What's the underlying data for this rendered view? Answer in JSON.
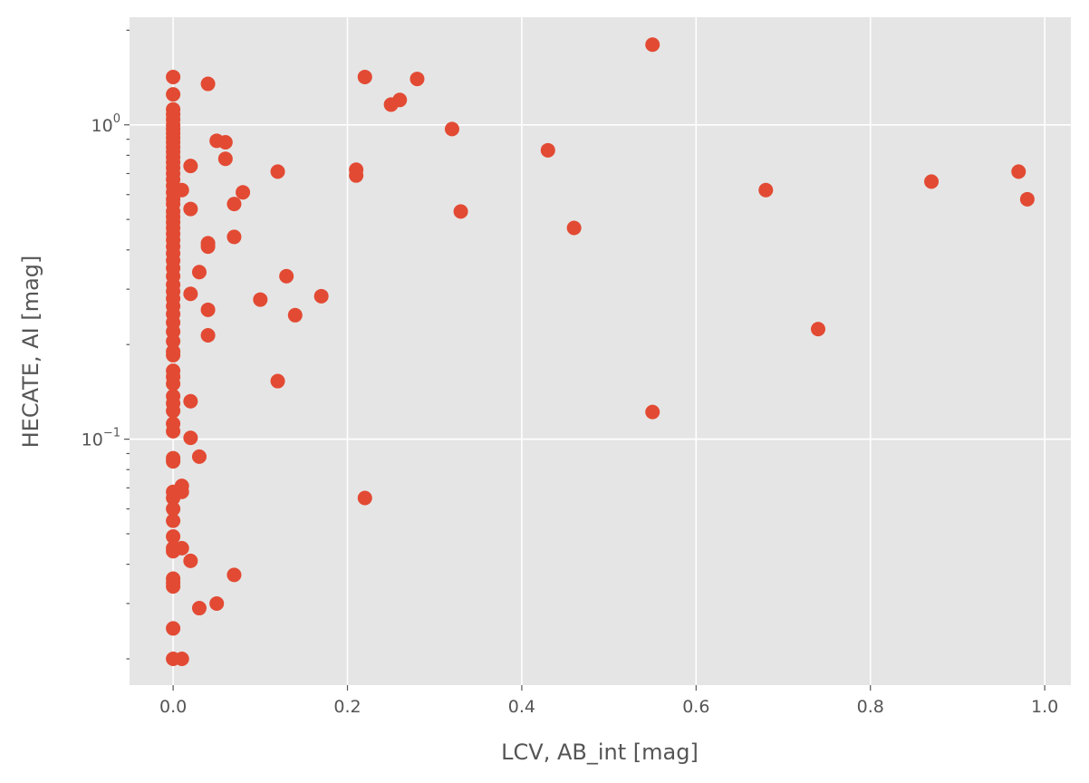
{
  "chart_data": {
    "type": "scatter",
    "title": "",
    "xlabel": "LCV, AB_int [mag]",
    "ylabel": "HECATE, AI [mag]",
    "xlim": [
      -0.05,
      1.03
    ],
    "ylim": [
      0.0165,
      2.2
    ],
    "yscale": "log",
    "grid": true,
    "legend": "none",
    "colors": {
      "background": "#e5e5e5",
      "grid": "#ffffff",
      "point": "#e24a33",
      "text": "#555555"
    },
    "x_ticks": [
      {
        "value": 0.0,
        "label": "0.0"
      },
      {
        "value": 0.2,
        "label": "0.2"
      },
      {
        "value": 0.4,
        "label": "0.4"
      },
      {
        "value": 0.6,
        "label": "0.6"
      },
      {
        "value": 0.8,
        "label": "0.8"
      },
      {
        "value": 1.0,
        "label": "1.0"
      }
    ],
    "y_ticks_major": [
      {
        "value": 0.1,
        "base": "10",
        "exp": "−1"
      },
      {
        "value": 1.0,
        "base": "10",
        "exp": "0"
      }
    ],
    "y_ticks_minor": [
      0.02,
      0.03,
      0.04,
      0.05,
      0.06,
      0.07,
      0.08,
      0.09,
      0.2,
      0.3,
      0.4,
      0.5,
      0.6,
      0.7,
      0.8,
      0.9,
      2.0
    ],
    "series": [
      {
        "points": [
          {
            "x": 0.55,
            "y": 1.8
          },
          {
            "x": 0.22,
            "y": 1.42
          },
          {
            "x": 0.28,
            "y": 1.4
          },
          {
            "x": 0.04,
            "y": 1.35
          },
          {
            "x": 0.26,
            "y": 1.2
          },
          {
            "x": 0.25,
            "y": 1.16
          },
          {
            "x": 0.32,
            "y": 0.97
          },
          {
            "x": 0.05,
            "y": 0.89
          },
          {
            "x": 0.06,
            "y": 0.88
          },
          {
            "x": 0.43,
            "y": 0.83
          },
          {
            "x": 0.06,
            "y": 0.78
          },
          {
            "x": 0.02,
            "y": 0.74
          },
          {
            "x": 0.21,
            "y": 0.72
          },
          {
            "x": 0.12,
            "y": 0.71
          },
          {
            "x": 0.97,
            "y": 0.71
          },
          {
            "x": 0.21,
            "y": 0.69
          },
          {
            "x": 0.87,
            "y": 0.66
          },
          {
            "x": 0.01,
            "y": 0.62
          },
          {
            "x": 0.08,
            "y": 0.61
          },
          {
            "x": 0.68,
            "y": 0.62
          },
          {
            "x": 0.98,
            "y": 0.58
          },
          {
            "x": 0.07,
            "y": 0.56
          },
          {
            "x": 0.02,
            "y": 0.54
          },
          {
            "x": 0.33,
            "y": 0.53
          },
          {
            "x": 0.46,
            "y": 0.47
          },
          {
            "x": 0.07,
            "y": 0.44
          },
          {
            "x": 0.04,
            "y": 0.42
          },
          {
            "x": 0.04,
            "y": 0.41
          },
          {
            "x": 0.03,
            "y": 0.34
          },
          {
            "x": 0.13,
            "y": 0.33
          },
          {
            "x": 0.02,
            "y": 0.29
          },
          {
            "x": 0.17,
            "y": 0.285
          },
          {
            "x": 0.1,
            "y": 0.278
          },
          {
            "x": 0.04,
            "y": 0.258
          },
          {
            "x": 0.14,
            "y": 0.248
          },
          {
            "x": 0.74,
            "y": 0.224
          },
          {
            "x": 0.04,
            "y": 0.214
          },
          {
            "x": 0.12,
            "y": 0.153
          },
          {
            "x": 0.02,
            "y": 0.132
          },
          {
            "x": 0.55,
            "y": 0.122
          },
          {
            "x": 0.02,
            "y": 0.101
          },
          {
            "x": 0.03,
            "y": 0.088
          },
          {
            "x": 0.01,
            "y": 0.071
          },
          {
            "x": 0.01,
            "y": 0.068
          },
          {
            "x": 0.22,
            "y": 0.065
          },
          {
            "x": 0.01,
            "y": 0.045
          },
          {
            "x": 0.02,
            "y": 0.041
          },
          {
            "x": 0.07,
            "y": 0.037
          },
          {
            "x": 0.05,
            "y": 0.03
          },
          {
            "x": 0.03,
            "y": 0.029
          },
          {
            "x": 0.01,
            "y": 0.02
          },
          {
            "x": 0.0,
            "y": 1.42
          },
          {
            "x": 0.0,
            "y": 1.25
          },
          {
            "x": 0.0,
            "y": 1.12
          },
          {
            "x": 0.0,
            "y": 1.08
          },
          {
            "x": 0.0,
            "y": 1.04
          },
          {
            "x": 0.0,
            "y": 1.0
          },
          {
            "x": 0.0,
            "y": 0.97
          },
          {
            "x": 0.0,
            "y": 0.94
          },
          {
            "x": 0.0,
            "y": 0.91
          },
          {
            "x": 0.0,
            "y": 0.88
          },
          {
            "x": 0.0,
            "y": 0.85
          },
          {
            "x": 0.0,
            "y": 0.82
          },
          {
            "x": 0.0,
            "y": 0.79
          },
          {
            "x": 0.0,
            "y": 0.76
          },
          {
            "x": 0.0,
            "y": 0.73
          },
          {
            "x": 0.0,
            "y": 0.7
          },
          {
            "x": 0.0,
            "y": 0.67
          },
          {
            "x": 0.0,
            "y": 0.64
          },
          {
            "x": 0.0,
            "y": 0.61
          },
          {
            "x": 0.0,
            "y": 0.58
          },
          {
            "x": 0.0,
            "y": 0.56
          },
          {
            "x": 0.0,
            "y": 0.53
          },
          {
            "x": 0.0,
            "y": 0.51
          },
          {
            "x": 0.0,
            "y": 0.49
          },
          {
            "x": 0.0,
            "y": 0.47
          },
          {
            "x": 0.0,
            "y": 0.45
          },
          {
            "x": 0.0,
            "y": 0.43
          },
          {
            "x": 0.0,
            "y": 0.41
          },
          {
            "x": 0.0,
            "y": 0.39
          },
          {
            "x": 0.0,
            "y": 0.37
          },
          {
            "x": 0.0,
            "y": 0.35
          },
          {
            "x": 0.0,
            "y": 0.33
          },
          {
            "x": 0.0,
            "y": 0.31
          },
          {
            "x": 0.0,
            "y": 0.295
          },
          {
            "x": 0.0,
            "y": 0.28
          },
          {
            "x": 0.0,
            "y": 0.265
          },
          {
            "x": 0.0,
            "y": 0.25
          },
          {
            "x": 0.0,
            "y": 0.235
          },
          {
            "x": 0.0,
            "y": 0.22
          },
          {
            "x": 0.0,
            "y": 0.205
          },
          {
            "x": 0.0,
            "y": 0.19
          },
          {
            "x": 0.0,
            "y": 0.185
          },
          {
            "x": 0.0,
            "y": 0.165
          },
          {
            "x": 0.0,
            "y": 0.158
          },
          {
            "x": 0.0,
            "y": 0.15
          },
          {
            "x": 0.0,
            "y": 0.137
          },
          {
            "x": 0.0,
            "y": 0.13
          },
          {
            "x": 0.0,
            "y": 0.123
          },
          {
            "x": 0.0,
            "y": 0.112
          },
          {
            "x": 0.0,
            "y": 0.106
          },
          {
            "x": 0.0,
            "y": 0.087
          },
          {
            "x": 0.0,
            "y": 0.085
          },
          {
            "x": 0.0,
            "y": 0.068
          },
          {
            "x": 0.0,
            "y": 0.065
          },
          {
            "x": 0.0,
            "y": 0.06
          },
          {
            "x": 0.0,
            "y": 0.055
          },
          {
            "x": 0.0,
            "y": 0.049
          },
          {
            "x": 0.0,
            "y": 0.045
          },
          {
            "x": 0.0,
            "y": 0.044
          },
          {
            "x": 0.0,
            "y": 0.036
          },
          {
            "x": 0.0,
            "y": 0.035
          },
          {
            "x": 0.0,
            "y": 0.034
          },
          {
            "x": 0.0,
            "y": 0.025
          },
          {
            "x": 0.0,
            "y": 0.02
          }
        ]
      }
    ]
  }
}
